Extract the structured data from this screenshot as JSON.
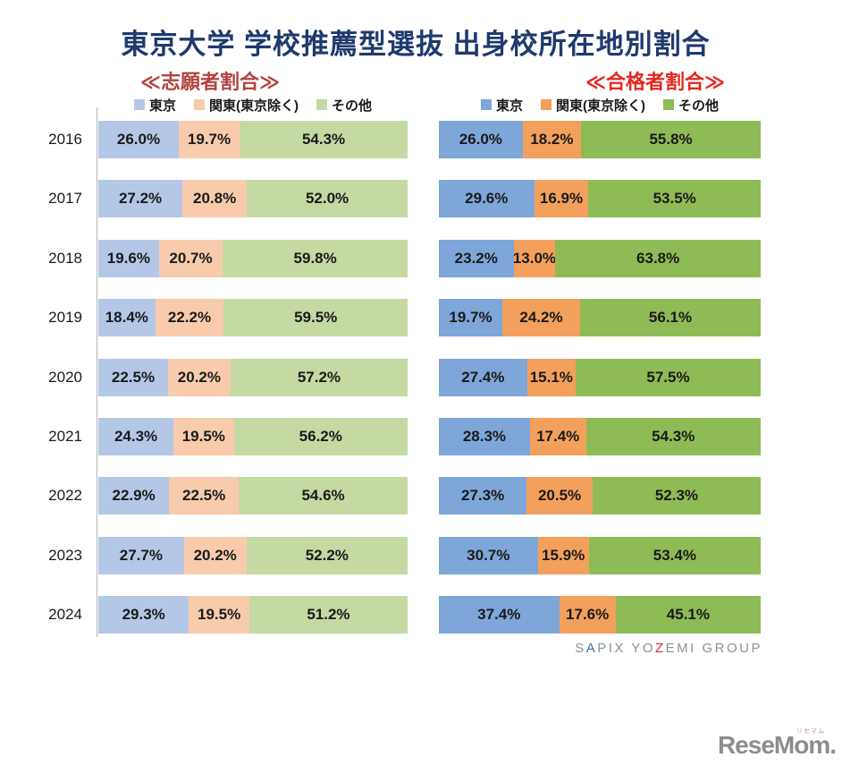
{
  "title": "東京大学 学校推薦型選抜  出身校所在地別割合",
  "colors": {
    "title": "#1f3a6d",
    "subtitle_left": "#b34441",
    "subtitle_right": "#e32820",
    "axis": "#b3b3b3",
    "bar_label": "#1a1a1a"
  },
  "chart_data": [
    {
      "type": "bar",
      "stacked": true,
      "orientation": "horizontal",
      "title": "志願者割合",
      "title_display": "≪志願者割合≫",
      "unit": "%",
      "xlim": [
        0,
        100
      ],
      "categories": [
        "2016",
        "2017",
        "2018",
        "2019",
        "2020",
        "2021",
        "2022",
        "2023",
        "2024"
      ],
      "series": [
        {
          "name": "東京",
          "color": "#b4c7e7",
          "values": [
            26.0,
            27.2,
            19.6,
            18.4,
            22.5,
            24.3,
            22.9,
            27.7,
            29.3
          ]
        },
        {
          "name": "関東(東京除く)",
          "color": "#f8cbad",
          "values": [
            19.7,
            20.8,
            20.7,
            22.2,
            20.2,
            19.5,
            22.5,
            20.2,
            19.5
          ]
        },
        {
          "name": "その他",
          "color": "#c5d9a3",
          "values": [
            54.3,
            52.0,
            59.8,
            59.5,
            57.2,
            56.2,
            54.6,
            52.2,
            51.2
          ]
        }
      ]
    },
    {
      "type": "bar",
      "stacked": true,
      "orientation": "horizontal",
      "title": "合格者割合",
      "title_display": "≪合格者割合≫",
      "unit": "%",
      "xlim": [
        0,
        100
      ],
      "categories": [
        "2016",
        "2017",
        "2018",
        "2019",
        "2020",
        "2021",
        "2022",
        "2023",
        "2024"
      ],
      "series": [
        {
          "name": "東京",
          "color": "#7ea6d9",
          "values": [
            26.0,
            29.6,
            23.2,
            19.7,
            27.4,
            28.3,
            27.3,
            30.7,
            37.4
          ]
        },
        {
          "name": "関東(東京除く)",
          "color": "#f3a05c",
          "values": [
            18.2,
            16.9,
            13.0,
            24.2,
            15.1,
            17.4,
            20.5,
            15.9,
            17.6
          ]
        },
        {
          "name": "その他",
          "color": "#8fbb56",
          "values": [
            55.8,
            53.5,
            63.8,
            56.1,
            57.5,
            54.3,
            52.3,
            53.4,
            45.1
          ]
        }
      ]
    }
  ],
  "footer": {
    "sapix_logo": {
      "full": "SAPIX YOZEMI GROUP",
      "part1": "S",
      "part_a": "A",
      "part2": "PIX YO",
      "part_z": "Z",
      "part3": "EMI GROUP",
      "gray": "#8a9099",
      "blue": "#3c6ea5",
      "red": "#d42a28"
    },
    "resemom_logo": {
      "text": "ReseMom.",
      "ruby": "リセマム",
      "color": "#8d8d8d",
      "ruby_color": "#d98c8c"
    }
  }
}
